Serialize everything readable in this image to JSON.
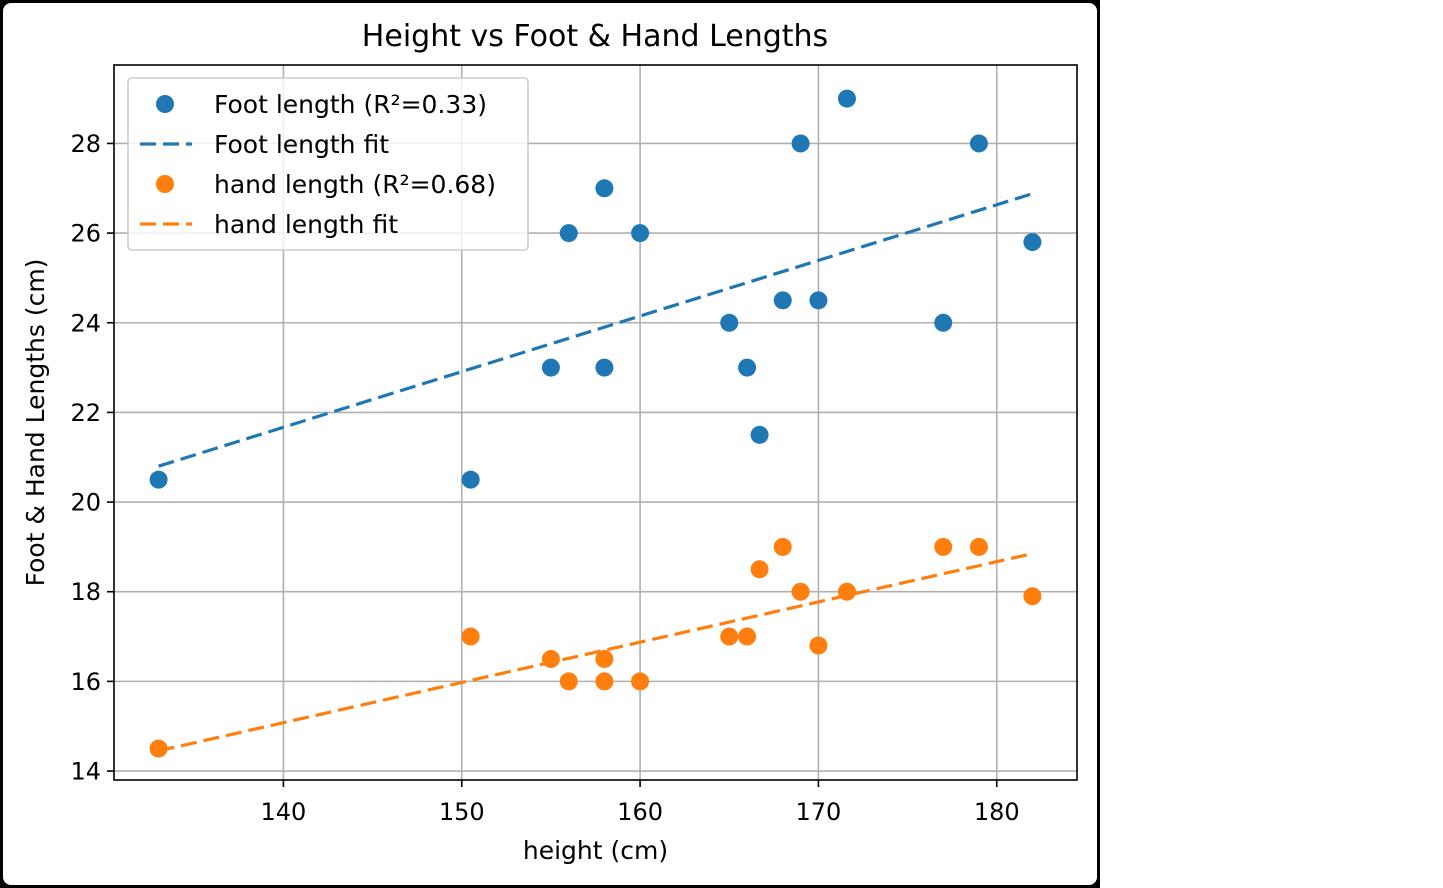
{
  "chart_data": {
    "type": "scatter",
    "title": "Height vs Foot & Hand Lengths",
    "xlabel": "height (cm)",
    "ylabel": "Foot & Hand Lengths (cm)",
    "xlim": [
      130.5,
      184.5
    ],
    "ylim": [
      13.8,
      29.75
    ],
    "xticks": [
      140,
      150,
      160,
      170,
      180
    ],
    "yticks": [
      14,
      16,
      18,
      20,
      22,
      24,
      26,
      28
    ],
    "grid": true,
    "legend_position": "top-left",
    "legend": [
      {
        "label": "Foot length (R²=0.33)",
        "kind": "marker",
        "series": "foot"
      },
      {
        "label": "Foot length fit",
        "kind": "line",
        "series": "foot"
      },
      {
        "label": "hand length (R²=0.68)",
        "kind": "marker",
        "series": "hand"
      },
      {
        "label": "hand length fit",
        "kind": "line",
        "series": "hand"
      }
    ],
    "series": [
      {
        "name": "Foot length (R²=0.33)",
        "key": "foot",
        "color": "#1f77b4",
        "points": [
          {
            "x": 133.0,
            "y": 20.5
          },
          {
            "x": 150.5,
            "y": 20.5
          },
          {
            "x": 155.0,
            "y": 23.0
          },
          {
            "x": 156.0,
            "y": 26.0
          },
          {
            "x": 158.0,
            "y": 27.0
          },
          {
            "x": 158.0,
            "y": 23.0
          },
          {
            "x": 160.0,
            "y": 26.0
          },
          {
            "x": 165.0,
            "y": 24.0
          },
          {
            "x": 166.0,
            "y": 23.0
          },
          {
            "x": 166.7,
            "y": 21.5
          },
          {
            "x": 168.0,
            "y": 24.5
          },
          {
            "x": 169.0,
            "y": 28.0
          },
          {
            "x": 170.0,
            "y": 24.5
          },
          {
            "x": 171.6,
            "y": 29.0
          },
          {
            "x": 177.0,
            "y": 24.0
          },
          {
            "x": 179.0,
            "y": 28.0
          },
          {
            "x": 182.0,
            "y": 25.8
          }
        ],
        "fit": {
          "name": "Foot length fit",
          "x": [
            133.0,
            182.0
          ],
          "y": [
            20.8,
            26.88
          ]
        }
      },
      {
        "name": "hand length (R²=0.68)",
        "key": "hand",
        "color": "#ff7f0e",
        "points": [
          {
            "x": 133.0,
            "y": 14.5
          },
          {
            "x": 150.5,
            "y": 17.0
          },
          {
            "x": 155.0,
            "y": 16.5
          },
          {
            "x": 156.0,
            "y": 16.0
          },
          {
            "x": 158.0,
            "y": 16.5
          },
          {
            "x": 158.0,
            "y": 16.0
          },
          {
            "x": 160.0,
            "y": 16.0
          },
          {
            "x": 165.0,
            "y": 17.0
          },
          {
            "x": 166.0,
            "y": 17.0
          },
          {
            "x": 166.7,
            "y": 18.5
          },
          {
            "x": 168.0,
            "y": 19.0
          },
          {
            "x": 169.0,
            "y": 18.0
          },
          {
            "x": 170.0,
            "y": 16.8
          },
          {
            "x": 171.6,
            "y": 18.0
          },
          {
            "x": 177.0,
            "y": 19.0
          },
          {
            "x": 179.0,
            "y": 19.0
          },
          {
            "x": 182.0,
            "y": 17.9
          }
        ],
        "fit": {
          "name": "hand length fit",
          "x": [
            133.0,
            182.0
          ],
          "y": [
            14.45,
            18.85
          ]
        }
      }
    ]
  }
}
